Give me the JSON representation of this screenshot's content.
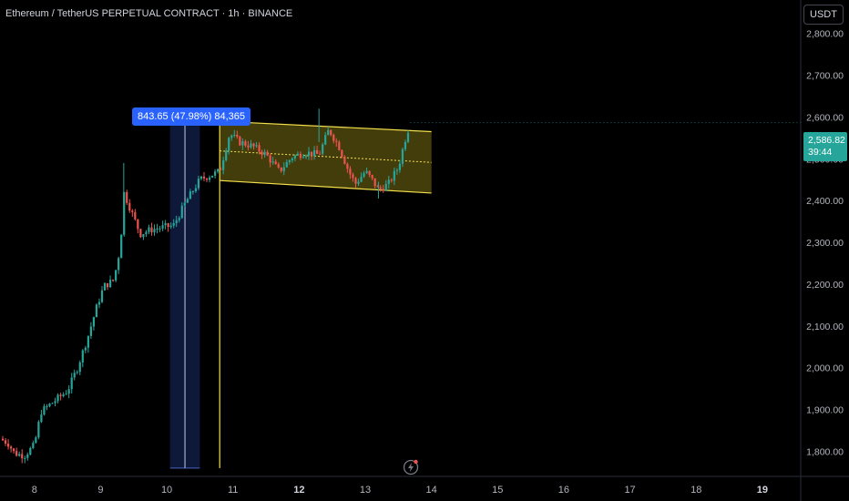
{
  "header": {
    "symbol_title": "Ethereum / TetherUS PERPETUAL CONTRACT · 1h · BINANCE"
  },
  "axis_unit": "USDT",
  "last_price": {
    "price": "2,586.82",
    "countdown": "39:44",
    "color": "#26a69a"
  },
  "measure_tool": {
    "label": "843.65 (47.98%) 84,365",
    "from_price": 1760,
    "to_price": 2600,
    "from_day": 10.05,
    "to_day": 10.5,
    "color": "#2962ff"
  },
  "colors": {
    "up": "#26a69a",
    "down": "#ef5350",
    "channel": "#f5e04a",
    "channel_fill": "#5a5210",
    "background": "#000000",
    "grid_text": "#b2b5be"
  },
  "icons": {
    "alert": "flash-icon"
  },
  "chart_data": {
    "type": "candlestick",
    "title": "Ethereum / TetherUS PERPETUAL CONTRACT · 1h · BINANCE",
    "x_ticks": [
      "8",
      "9",
      "10",
      "11",
      "12",
      "13",
      "14",
      "15",
      "16",
      "17",
      "18",
      "19"
    ],
    "x_tick_days": [
      8,
      9,
      10,
      11,
      12,
      13,
      14,
      15,
      16,
      17,
      18,
      19
    ],
    "bold_ticks": [
      "12",
      "19"
    ],
    "y_ticks": [
      "1,800.00",
      "1,900.00",
      "2,000.00",
      "2,100.00",
      "2,200.00",
      "2,300.00",
      "2,400.00",
      "2,500.00",
      "2,600.00",
      "2,700.00",
      "2,800.00"
    ],
    "y_tick_values": [
      1800,
      1900,
      2000,
      2100,
      2200,
      2300,
      2400,
      2500,
      2600,
      2700,
      2800
    ],
    "xlim": [
      7.48,
      19.58
    ],
    "ylim": [
      1740,
      2880
    ],
    "grid": false,
    "close_path": [
      [
        7.48,
        1830
      ],
      [
        7.6,
        1820
      ],
      [
        7.7,
        1795
      ],
      [
        7.85,
        1790
      ],
      [
        8.0,
        1815
      ],
      [
        8.1,
        1895
      ],
      [
        8.3,
        1920
      ],
      [
        8.5,
        1945
      ],
      [
        8.65,
        2000
      ],
      [
        8.8,
        2070
      ],
      [
        8.95,
        2150
      ],
      [
        9.05,
        2195
      ],
      [
        9.2,
        2210
      ],
      [
        9.3,
        2290
      ],
      [
        9.35,
        2420
      ],
      [
        9.5,
        2360
      ],
      [
        9.6,
        2320
      ],
      [
        9.75,
        2330
      ],
      [
        9.9,
        2335
      ],
      [
        10.1,
        2340
      ],
      [
        10.3,
        2400
      ],
      [
        10.5,
        2450
      ],
      [
        10.8,
        2470
      ],
      [
        10.95,
        2560
      ],
      [
        11.1,
        2540
      ],
      [
        11.3,
        2530
      ],
      [
        11.5,
        2510
      ],
      [
        11.7,
        2470
      ],
      [
        11.9,
        2505
      ],
      [
        12.1,
        2515
      ],
      [
        12.3,
        2510
      ],
      [
        12.45,
        2570
      ],
      [
        12.6,
        2530
      ],
      [
        12.75,
        2470
      ],
      [
        12.85,
        2440
      ],
      [
        13.0,
        2470
      ],
      [
        13.1,
        2450
      ],
      [
        13.2,
        2425
      ],
      [
        13.35,
        2440
      ],
      [
        13.5,
        2480
      ],
      [
        13.6,
        2545
      ],
      [
        13.68,
        2587
      ]
    ],
    "channel": {
      "upper": [
        [
          10.8,
          2590
        ],
        [
          14.0,
          2565
        ]
      ],
      "lower": [
        [
          10.8,
          2448
        ],
        [
          14.0,
          2418
        ]
      ],
      "median_dotted": true,
      "anchor_vertical_line": {
        "day": 10.8,
        "from": 1760,
        "to": 2590
      }
    },
    "last_price": 2586.82
  }
}
